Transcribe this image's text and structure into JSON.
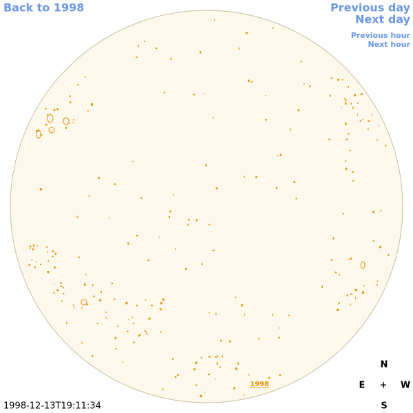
{
  "nav": {
    "back": "Back to 1998",
    "previous_day": "Previous day",
    "next_day": "Next day",
    "previous_hour": "Previous hour",
    "next_hour": "Next hour"
  },
  "timestamp": "1998-12-13T19:11:34",
  "year_link": "1998",
  "compass": {
    "north": "N",
    "east": "E",
    "center": "+",
    "west": "W",
    "south": "S"
  }
}
